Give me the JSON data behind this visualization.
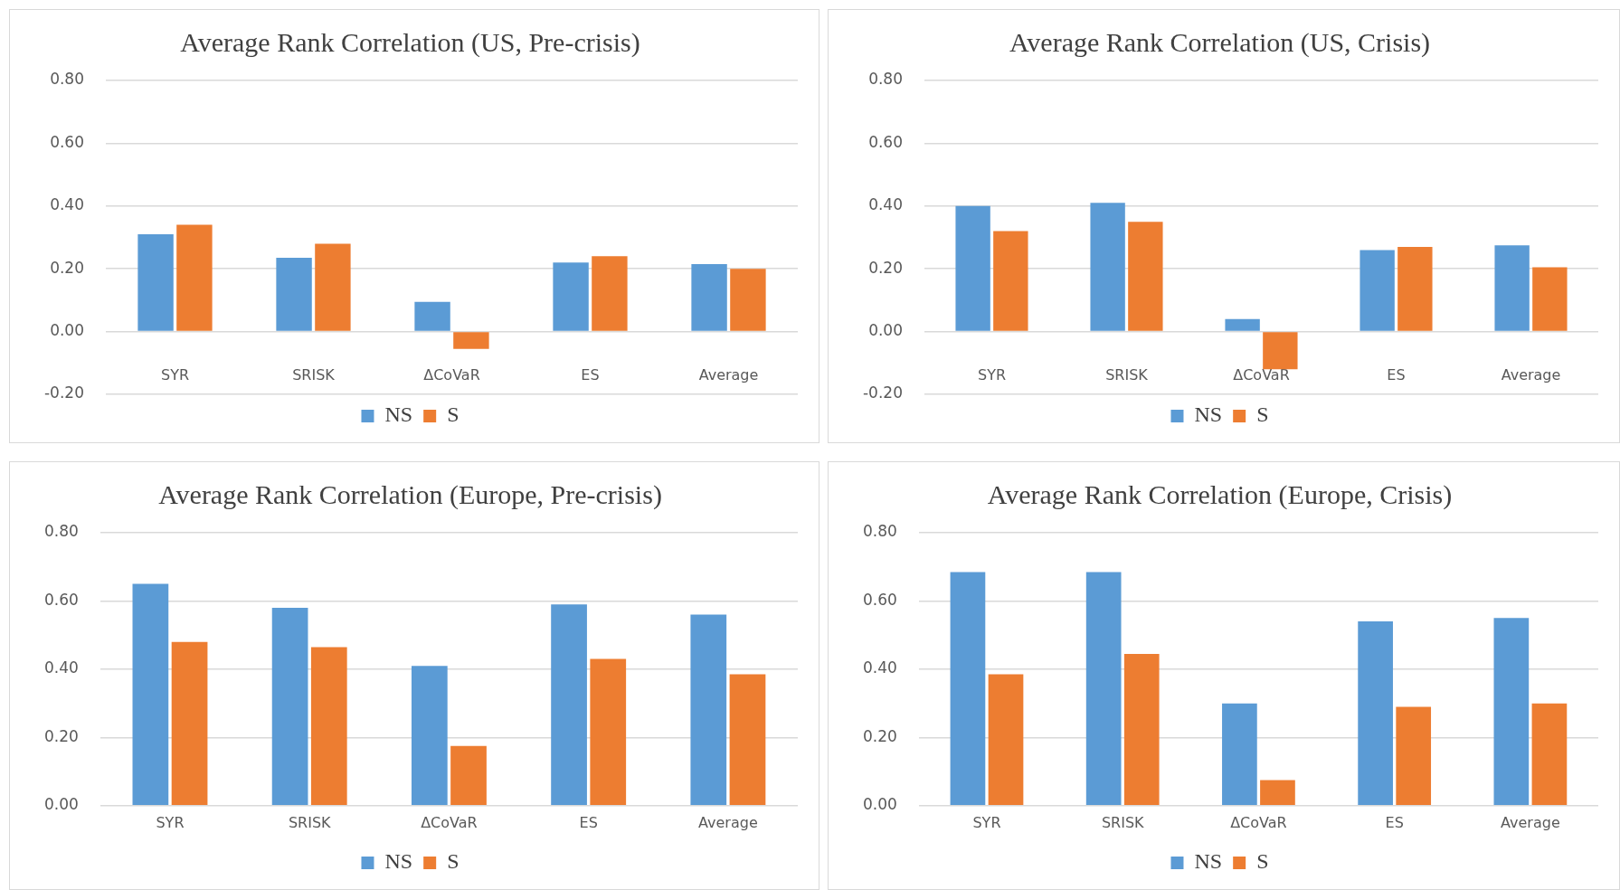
{
  "chart_data": [
    {
      "type": "bar",
      "title": "Average Rank Correlation (US, Pre-crisis)",
      "categories": [
        "SYR",
        "SRISK",
        "ΔCoVaR",
        "ES",
        "Average"
      ],
      "series": [
        {
          "name": "NS",
          "color": "#5b9bd5",
          "values": [
            0.31,
            0.235,
            0.095,
            0.22,
            0.215
          ]
        },
        {
          "name": "S",
          "color": "#ed7d31",
          "values": [
            0.34,
            0.28,
            -0.055,
            0.24,
            0.2
          ]
        }
      ],
      "ylim": [
        -0.2,
        0.8
      ],
      "yticks": [
        {
          "value": -0.2,
          "label": "-0.20"
        },
        {
          "value": 0,
          "label": "0.00"
        },
        {
          "value": 0.2,
          "label": "0.20"
        },
        {
          "value": 0.4,
          "label": "0.40"
        },
        {
          "value": 0.6,
          "label": "0.60"
        },
        {
          "value": 0.8,
          "label": "0.80"
        }
      ],
      "grid": "y",
      "legend": "bottom"
    },
    {
      "type": "bar",
      "title": "Average Rank Correlation (US, Crisis)",
      "categories": [
        "SYR",
        "SRISK",
        "ΔCoVaR",
        "ES",
        "Average"
      ],
      "series": [
        {
          "name": "NS",
          "color": "#5b9bd5",
          "values": [
            0.4,
            0.41,
            0.04,
            0.26,
            0.275
          ]
        },
        {
          "name": "S",
          "color": "#ed7d31",
          "values": [
            0.32,
            0.35,
            -0.12,
            0.27,
            0.205
          ]
        }
      ],
      "ylim": [
        -0.2,
        0.8
      ],
      "yticks": [
        {
          "value": -0.2,
          "label": "-0.20"
        },
        {
          "value": 0,
          "label": "0.00"
        },
        {
          "value": 0.2,
          "label": "0.20"
        },
        {
          "value": 0.4,
          "label": "0.40"
        },
        {
          "value": 0.6,
          "label": "0.60"
        },
        {
          "value": 0.8,
          "label": "0.80"
        }
      ],
      "grid": "y",
      "legend": "bottom"
    },
    {
      "type": "bar",
      "title": "Average Rank Correlation (Europe, Pre-crisis)",
      "categories": [
        "SYR",
        "SRISK",
        "ΔCoVaR",
        "ES",
        "Average"
      ],
      "series": [
        {
          "name": "NS",
          "color": "#5b9bd5",
          "values": [
            0.65,
            0.58,
            0.41,
            0.59,
            0.56
          ]
        },
        {
          "name": "S",
          "color": "#ed7d31",
          "values": [
            0.48,
            0.465,
            0.175,
            0.43,
            0.385
          ]
        }
      ],
      "ylim": [
        0,
        0.8
      ],
      "yticks": [
        {
          "value": 0,
          "label": "0.00"
        },
        {
          "value": 0.2,
          "label": "0.20"
        },
        {
          "value": 0.4,
          "label": "0.40"
        },
        {
          "value": 0.6,
          "label": "0.60"
        },
        {
          "value": 0.8,
          "label": "0.80"
        }
      ],
      "grid": "y",
      "legend": "bottom"
    },
    {
      "type": "bar",
      "title": "Average Rank Correlation (Europe, Crisis)",
      "categories": [
        "SYR",
        "SRISK",
        "ΔCoVaR",
        "ES",
        "Average"
      ],
      "series": [
        {
          "name": "NS",
          "color": "#5b9bd5",
          "values": [
            0.685,
            0.685,
            0.3,
            0.54,
            0.55
          ]
        },
        {
          "name": "S",
          "color": "#ed7d31",
          "values": [
            0.385,
            0.445,
            0.075,
            0.29,
            0.3
          ]
        }
      ],
      "ylim": [
        0,
        0.8
      ],
      "yticks": [
        {
          "value": 0,
          "label": "0.00"
        },
        {
          "value": 0.2,
          "label": "0.20"
        },
        {
          "value": 0.4,
          "label": "0.40"
        },
        {
          "value": 0.6,
          "label": "0.60"
        },
        {
          "value": 0.8,
          "label": "0.80"
        }
      ],
      "grid": "y",
      "legend": "bottom"
    }
  ]
}
